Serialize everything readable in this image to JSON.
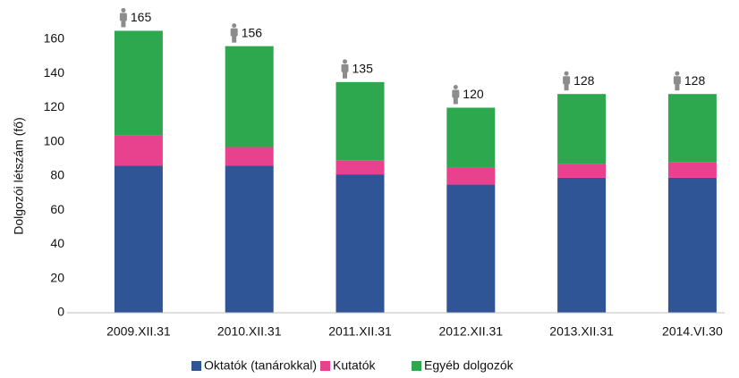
{
  "chart_data": {
    "type": "stacked_bar",
    "y_label": "Dolgozói létszám (fő)",
    "categories": [
      "2009.XII.31",
      "2010.XII.31",
      "2011.XII.31",
      "2012.XII.31",
      "2013.XII.31",
      "2014.VI.30"
    ],
    "series": [
      {
        "name": "Oktatók (tanárokkal)",
        "color": "#2f5597",
        "values": [
          86,
          86,
          81,
          75,
          79,
          79
        ]
      },
      {
        "name": "Kutatók",
        "color": "#e8418e",
        "values": [
          18,
          11,
          8,
          10,
          8,
          9
        ]
      },
      {
        "name": "Egyéb dolgozók",
        "color": "#2ea84f",
        "values": [
          61,
          59,
          46,
          35,
          41,
          40
        ]
      }
    ],
    "totals": [
      165,
      156,
      135,
      120,
      128,
      128
    ],
    "ylim": [
      0,
      160
    ],
    "yticks": [
      0,
      20,
      40,
      60,
      80,
      100,
      120,
      140,
      160
    ],
    "grid": false,
    "legend": "bottom"
  }
}
